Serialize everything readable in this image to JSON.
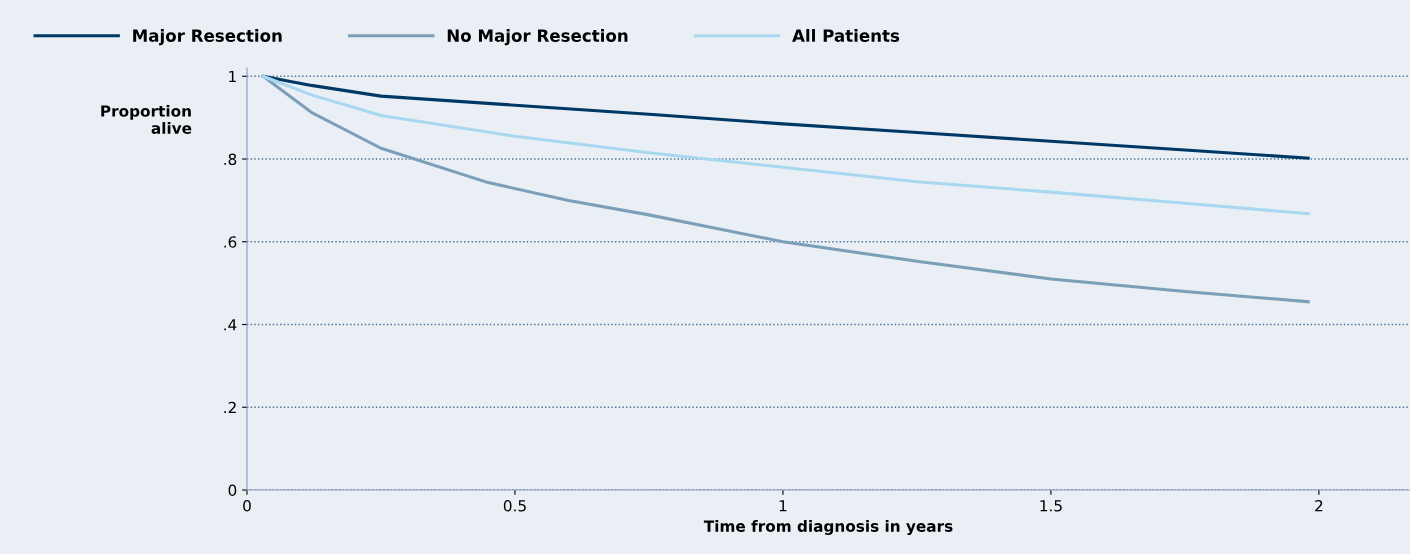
{
  "chart_data": {
    "type": "line",
    "xlabel": "Time from diagnosis in years",
    "ylabel": "Proportion\nalive",
    "xlim": [
      0,
      2.17
    ],
    "ylim": [
      0,
      1.02
    ],
    "xticks": [
      0,
      0.5,
      1,
      1.5,
      2
    ],
    "yticks": [
      0,
      {
        "value": 0.2,
        "label": ".2"
      },
      {
        "value": 0.4,
        "label": ".4"
      },
      {
        "value": 0.6,
        "label": ".6"
      },
      {
        "value": 0.8,
        "label": ".8"
      },
      1
    ],
    "grid": "y",
    "legend": "top left",
    "line_style": "solid",
    "marker": "none",
    "series": [
      {
        "name": "Major Resection",
        "color": "#003865",
        "x": [
          0.03,
          0.12,
          0.25,
          0.5,
          0.75,
          1.0,
          1.25,
          1.5,
          1.75,
          1.98
        ],
        "values": [
          1,
          0.978,
          0.952,
          0.93,
          0.908,
          0.885,
          0.864,
          0.843,
          0.822,
          0.802
        ]
      },
      {
        "name": "No Major Resection",
        "color": "#7b9fb8",
        "x": [
          0.03,
          0.12,
          0.25,
          0.45,
          0.6,
          0.75,
          1.0,
          1.25,
          1.5,
          1.75,
          1.98
        ],
        "values": [
          1,
          0.913,
          0.826,
          0.743,
          0.7,
          0.665,
          0.6,
          0.553,
          0.51,
          0.48,
          0.455
        ]
      },
      {
        "name": "All Patients",
        "color": "#a8d8f0",
        "x": [
          0.03,
          0.12,
          0.25,
          0.5,
          0.75,
          1.0,
          1.25,
          1.5,
          1.75,
          1.98
        ],
        "values": [
          1,
          0.955,
          0.905,
          0.855,
          0.815,
          0.78,
          0.745,
          0.72,
          0.693,
          0.668
        ]
      }
    ]
  }
}
